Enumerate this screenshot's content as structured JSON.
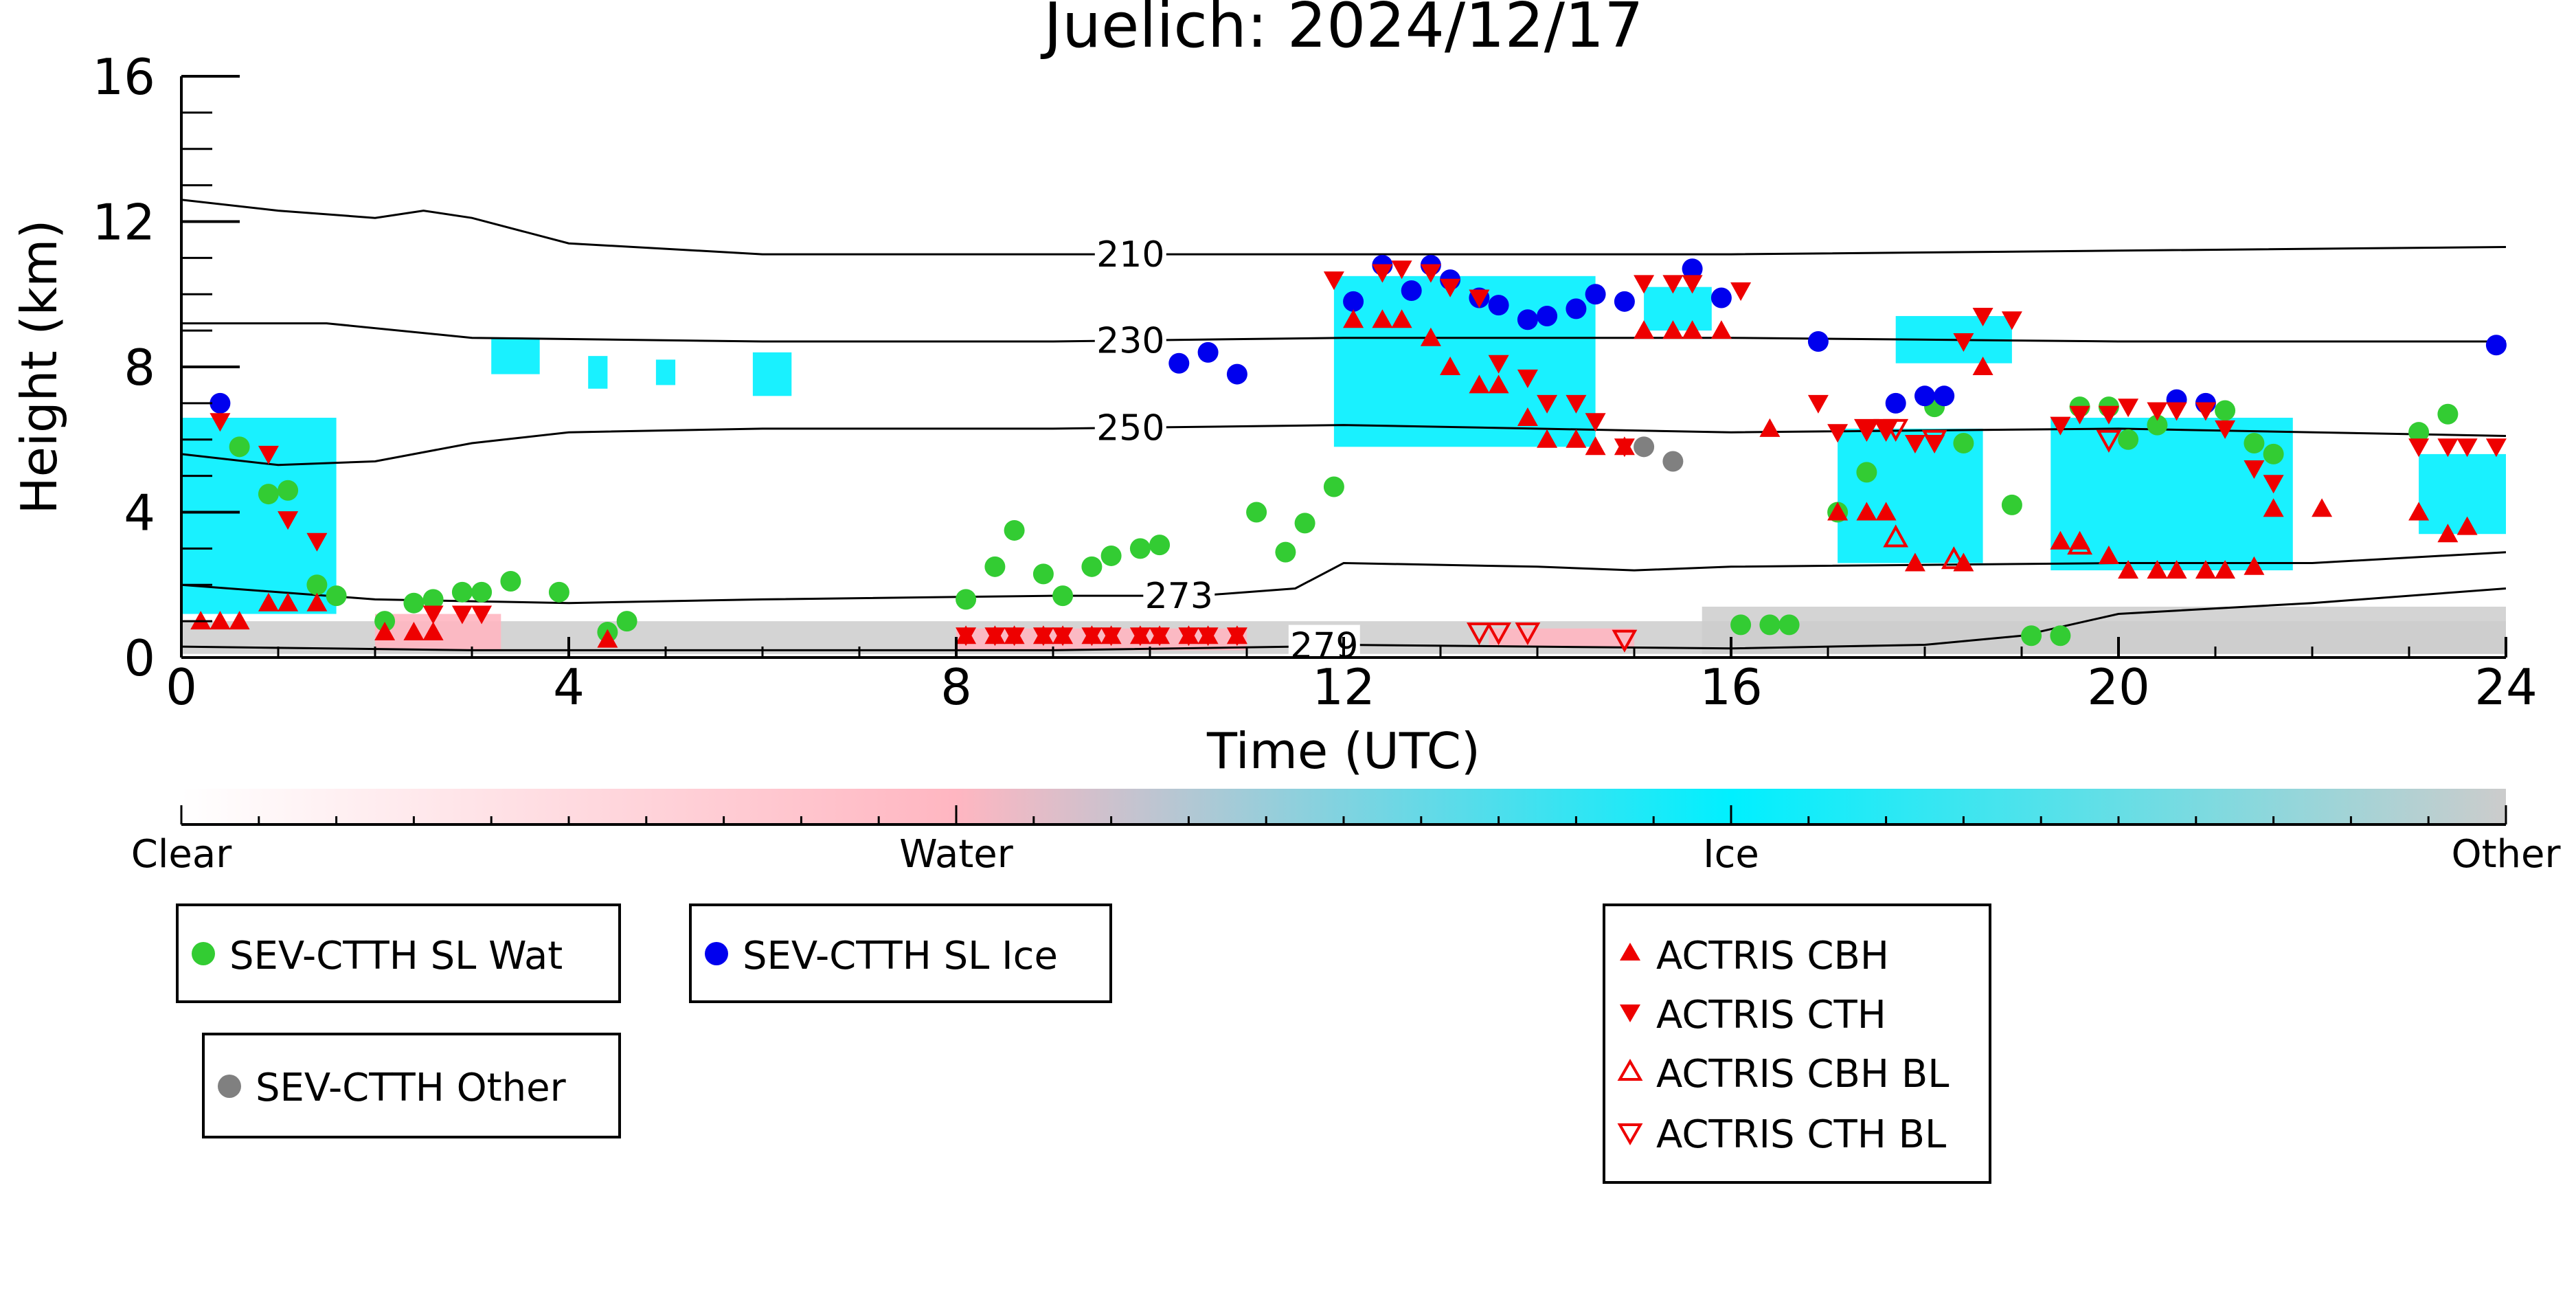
{
  "chart_data": {
    "type": "scatter",
    "title": "Juelich: 2024/12/17",
    "xlabel": "Time (UTC)",
    "ylabel": "Height (km)",
    "xlim": [
      0,
      24
    ],
    "ylim": [
      0,
      16
    ],
    "x_ticks": [
      0,
      4,
      8,
      12,
      16,
      20,
      24
    ],
    "y_ticks": [
      0,
      4,
      8,
      12,
      16
    ],
    "grid": false,
    "colorbar": {
      "labels": [
        "Clear",
        "Water",
        "Ice",
        "Other"
      ],
      "stops": [
        {
          "pos": 0.0,
          "color": "#ffffff"
        },
        {
          "pos": 0.333,
          "color": "#ffb6c1"
        },
        {
          "pos": 0.667,
          "color": "#00f0ff"
        },
        {
          "pos": 1.0,
          "color": "#cccccc"
        }
      ]
    },
    "colors": {
      "water": "#33cc33",
      "ice": "#0000ee",
      "other": "#808080",
      "actris": "#ee0000",
      "mask_ice": "#00f0ff",
      "mask_water": "#ffb6c1",
      "mask_other": "#cccccc"
    },
    "contours": [
      {
        "label": "210",
        "label_x": 9.8,
        "points": [
          [
            0,
            12.6
          ],
          [
            1,
            12.3
          ],
          [
            2,
            12.1
          ],
          [
            2.5,
            12.3
          ],
          [
            3,
            12.1
          ],
          [
            4,
            11.4
          ],
          [
            6,
            11.1
          ],
          [
            9,
            11.1
          ],
          [
            12,
            11.1
          ],
          [
            16,
            11.1
          ],
          [
            20,
            11.2
          ],
          [
            24,
            11.3
          ]
        ]
      },
      {
        "label": "230",
        "label_x": 9.8,
        "points": [
          [
            0,
            9.2
          ],
          [
            1.5,
            9.2
          ],
          [
            3,
            8.8
          ],
          [
            6,
            8.7
          ],
          [
            9,
            8.7
          ],
          [
            12,
            8.8
          ],
          [
            16,
            8.8
          ],
          [
            20,
            8.7
          ],
          [
            24,
            8.7
          ]
        ]
      },
      {
        "label": "250",
        "label_x": 9.8,
        "points": [
          [
            0,
            5.6
          ],
          [
            1,
            5.3
          ],
          [
            2,
            5.4
          ],
          [
            3,
            5.9
          ],
          [
            4,
            6.2
          ],
          [
            6,
            6.3
          ],
          [
            9,
            6.3
          ],
          [
            12,
            6.4
          ],
          [
            14,
            6.3
          ],
          [
            16,
            6.2
          ],
          [
            20,
            6.3
          ],
          [
            24,
            6.1
          ]
        ]
      },
      {
        "label": "273",
        "label_x": 10.3,
        "points": [
          [
            0,
            2.0
          ],
          [
            2,
            1.6
          ],
          [
            4,
            1.5
          ],
          [
            6,
            1.6
          ],
          [
            9,
            1.7
          ],
          [
            10.5,
            1.7
          ],
          [
            11.5,
            1.9
          ],
          [
            12,
            2.6
          ],
          [
            14,
            2.5
          ],
          [
            15,
            2.4
          ],
          [
            16,
            2.5
          ],
          [
            20,
            2.6
          ],
          [
            22,
            2.6
          ],
          [
            24,
            2.9
          ]
        ]
      },
      {
        "label": "279",
        "label_x": 11.8,
        "points": [
          [
            0,
            0.3
          ],
          [
            3,
            0.2
          ],
          [
            6,
            0.2
          ],
          [
            9,
            0.2
          ],
          [
            11.5,
            0.3
          ],
          [
            12,
            0.35
          ],
          [
            16,
            0.25
          ],
          [
            18,
            0.35
          ],
          [
            19,
            0.6
          ],
          [
            20,
            1.2
          ],
          [
            22,
            1.5
          ],
          [
            24,
            1.9
          ]
        ]
      }
    ],
    "mask_regions": [
      {
        "type": "ice",
        "x": [
          0,
          1.6
        ],
        "y": [
          1.2,
          6.6
        ]
      },
      {
        "type": "ice",
        "x": [
          11.9,
          14.6
        ],
        "y": [
          5.8,
          10.5
        ]
      },
      {
        "type": "ice",
        "x": [
          15.1,
          15.8
        ],
        "y": [
          9.0,
          10.2
        ]
      },
      {
        "type": "ice",
        "x": [
          17.1,
          18.6
        ],
        "y": [
          2.6,
          6.3
        ]
      },
      {
        "type": "ice",
        "x": [
          17.7,
          18.9
        ],
        "y": [
          8.1,
          9.4
        ]
      },
      {
        "type": "ice",
        "x": [
          19.3,
          21.8
        ],
        "y": [
          2.4,
          6.6
        ]
      },
      {
        "type": "ice",
        "x": [
          23.1,
          24.0
        ],
        "y": [
          3.4,
          5.6
        ]
      },
      {
        "type": "ice",
        "x": [
          3.2,
          3.7
        ],
        "y": [
          7.8,
          8.8
        ]
      },
      {
        "type": "ice",
        "x": [
          4.2,
          4.4
        ],
        "y": [
          7.4,
          8.3
        ]
      },
      {
        "type": "ice",
        "x": [
          4.9,
          5.1
        ],
        "y": [
          7.5,
          8.2
        ]
      },
      {
        "type": "ice",
        "x": [
          5.9,
          6.3
        ],
        "y": [
          7.2,
          8.4
        ]
      },
      {
        "type": "water",
        "x": [
          2.0,
          3.3
        ],
        "y": [
          0.2,
          1.2
        ]
      },
      {
        "type": "water",
        "x": [
          8.0,
          11.0
        ],
        "y": [
          0.2,
          0.8
        ]
      },
      {
        "type": "water",
        "x": [
          13.5,
          15.0
        ],
        "y": [
          0.3,
          0.8
        ]
      },
      {
        "type": "other",
        "x": [
          0.0,
          24.0
        ],
        "y": [
          0.1,
          1.0
        ]
      },
      {
        "type": "other",
        "x": [
          15.7,
          24.0
        ],
        "y": [
          0.1,
          1.4
        ]
      }
    ],
    "series": [
      {
        "name": "SEV-CTTH SL Wat",
        "marker": "circle",
        "color": "#33cc33",
        "x": [
          0.6,
          0.9,
          1.1,
          1.4,
          1.6,
          2.1,
          2.4,
          2.6,
          2.9,
          3.1,
          3.4,
          3.9,
          4.4,
          4.6,
          8.1,
          8.4,
          8.6,
          8.9,
          9.1,
          9.4,
          9.6,
          9.9,
          10.1,
          11.1,
          11.4,
          11.6,
          11.9,
          16.1,
          16.4,
          16.6,
          17.1,
          17.4,
          18.1,
          18.4,
          18.9,
          19.1,
          19.4,
          19.6,
          19.9,
          20.1,
          20.4,
          21.1,
          21.4,
          21.6,
          23.1,
          23.4
        ],
        "y": [
          5.8,
          4.5,
          4.6,
          2.0,
          1.7,
          1.0,
          1.5,
          1.6,
          1.8,
          1.8,
          2.1,
          1.8,
          0.7,
          1.0,
          1.6,
          2.5,
          3.5,
          2.3,
          1.7,
          2.5,
          2.8,
          3.0,
          3.1,
          4.0,
          2.9,
          3.7,
          4.7,
          0.9,
          0.9,
          0.9,
          4.0,
          5.1,
          6.9,
          5.9,
          4.2,
          0.6,
          0.6,
          6.9,
          6.9,
          6.0,
          6.4,
          6.8,
          5.9,
          5.6,
          6.2,
          6.7
        ]
      },
      {
        "name": "SEV-CTTH SL Ice",
        "marker": "circle",
        "color": "#0000ee",
        "x": [
          0.4,
          10.3,
          10.6,
          10.9,
          12.1,
          12.4,
          12.7,
          12.9,
          13.1,
          13.4,
          13.6,
          13.9,
          14.1,
          14.4,
          14.6,
          14.9,
          15.6,
          15.9,
          16.9,
          17.7,
          18.0,
          18.2,
          20.6,
          20.9,
          23.9
        ],
        "y": [
          7.0,
          8.1,
          8.4,
          7.8,
          9.8,
          10.8,
          10.1,
          10.8,
          10.4,
          9.9,
          9.7,
          9.3,
          9.4,
          9.6,
          10.0,
          9.8,
          10.7,
          9.9,
          8.7,
          7.0,
          7.2,
          7.2,
          7.1,
          7.0,
          8.6
        ]
      },
      {
        "name": "SEV-CTTH Other",
        "marker": "circle",
        "color": "#808080",
        "x": [
          15.1,
          15.4
        ],
        "y": [
          5.8,
          5.4
        ]
      },
      {
        "name": "ACTRIS CBH",
        "marker": "triangle-up",
        "color": "#ee0000",
        "filled": true,
        "x": [
          0.2,
          0.4,
          0.6,
          0.9,
          1.1,
          1.4,
          2.1,
          2.4,
          2.6,
          4.4,
          8.1,
          8.4,
          8.6,
          8.9,
          9.1,
          9.4,
          9.6,
          9.9,
          10.1,
          10.4,
          10.6,
          10.9,
          12.1,
          12.4,
          12.6,
          12.9,
          13.1,
          13.4,
          13.6,
          13.9,
          14.1,
          14.4,
          14.6,
          14.9,
          15.1,
          15.4,
          15.6,
          15.9,
          16.4,
          17.1,
          17.4,
          17.6,
          17.9,
          18.4,
          18.6,
          19.4,
          19.6,
          19.9,
          20.1,
          20.4,
          20.6,
          20.9,
          21.1,
          21.4,
          21.6,
          22.1,
          23.1,
          23.4,
          23.6
        ],
        "y": [
          1.0,
          1.0,
          1.0,
          1.5,
          1.5,
          1.5,
          0.7,
          0.7,
          0.7,
          0.5,
          0.6,
          0.6,
          0.6,
          0.6,
          0.6,
          0.6,
          0.6,
          0.6,
          0.6,
          0.6,
          0.6,
          0.6,
          9.3,
          9.3,
          9.3,
          8.8,
          8.0,
          7.5,
          7.5,
          6.6,
          6.0,
          6.0,
          5.8,
          5.8,
          9.0,
          9.0,
          9.0,
          9.0,
          6.3,
          4.0,
          4.0,
          4.0,
          2.6,
          2.6,
          8.0,
          3.2,
          3.2,
          2.8,
          2.4,
          2.4,
          2.4,
          2.4,
          2.4,
          2.5,
          4.1,
          4.1,
          4.0,
          3.4,
          3.6
        ]
      },
      {
        "name": "ACTRIS CTH",
        "marker": "triangle-down",
        "color": "#ee0000",
        "filled": true,
        "x": [
          0.4,
          0.9,
          1.1,
          1.4,
          2.6,
          2.9,
          3.1,
          8.1,
          8.4,
          8.6,
          8.9,
          9.1,
          9.4,
          9.6,
          9.9,
          10.1,
          10.4,
          10.6,
          10.9,
          11.9,
          12.4,
          12.6,
          12.9,
          13.1,
          13.4,
          13.6,
          13.9,
          14.1,
          14.4,
          14.6,
          14.9,
          15.1,
          15.4,
          15.6,
          16.1,
          16.9,
          17.1,
          17.4,
          17.6,
          17.9,
          18.1,
          18.4,
          18.6,
          18.9,
          19.4,
          19.6,
          19.9,
          20.1,
          20.4,
          20.6,
          20.9,
          21.1,
          21.4,
          21.6,
          23.1,
          23.4,
          23.6,
          23.9
        ],
        "y": [
          6.5,
          5.6,
          3.8,
          3.2,
          1.2,
          1.2,
          1.2,
          0.6,
          0.6,
          0.6,
          0.6,
          0.6,
          0.6,
          0.6,
          0.6,
          0.6,
          0.6,
          0.6,
          0.6,
          10.4,
          10.6,
          10.7,
          10.6,
          10.2,
          9.9,
          8.1,
          7.7,
          7.0,
          7.0,
          6.5,
          5.8,
          10.3,
          10.3,
          10.3,
          10.1,
          7.0,
          6.2,
          6.3,
          6.3,
          5.9,
          5.9,
          8.7,
          9.4,
          9.3,
          6.4,
          6.7,
          6.7,
          6.9,
          6.8,
          6.8,
          6.8,
          6.3,
          5.2,
          4.8,
          5.8,
          5.8,
          5.8,
          5.8
        ]
      },
      {
        "name": "ACTRIS CBH BL",
        "marker": "triangle-up",
        "color": "#ee0000",
        "filled": false,
        "x": [
          17.7,
          18.3,
          19.6
        ],
        "y": [
          3.3,
          2.7,
          3.1
        ]
      },
      {
        "name": "ACTRIS CTH BL",
        "marker": "triangle-down",
        "color": "#ee0000",
        "filled": false,
        "x": [
          13.4,
          13.6,
          13.9,
          14.9,
          17.4,
          17.6,
          17.7,
          18.1,
          19.9
        ],
        "y": [
          0.7,
          0.7,
          0.7,
          0.5,
          6.3,
          6.3,
          6.3,
          6.0,
          6.0
        ]
      }
    ]
  }
}
